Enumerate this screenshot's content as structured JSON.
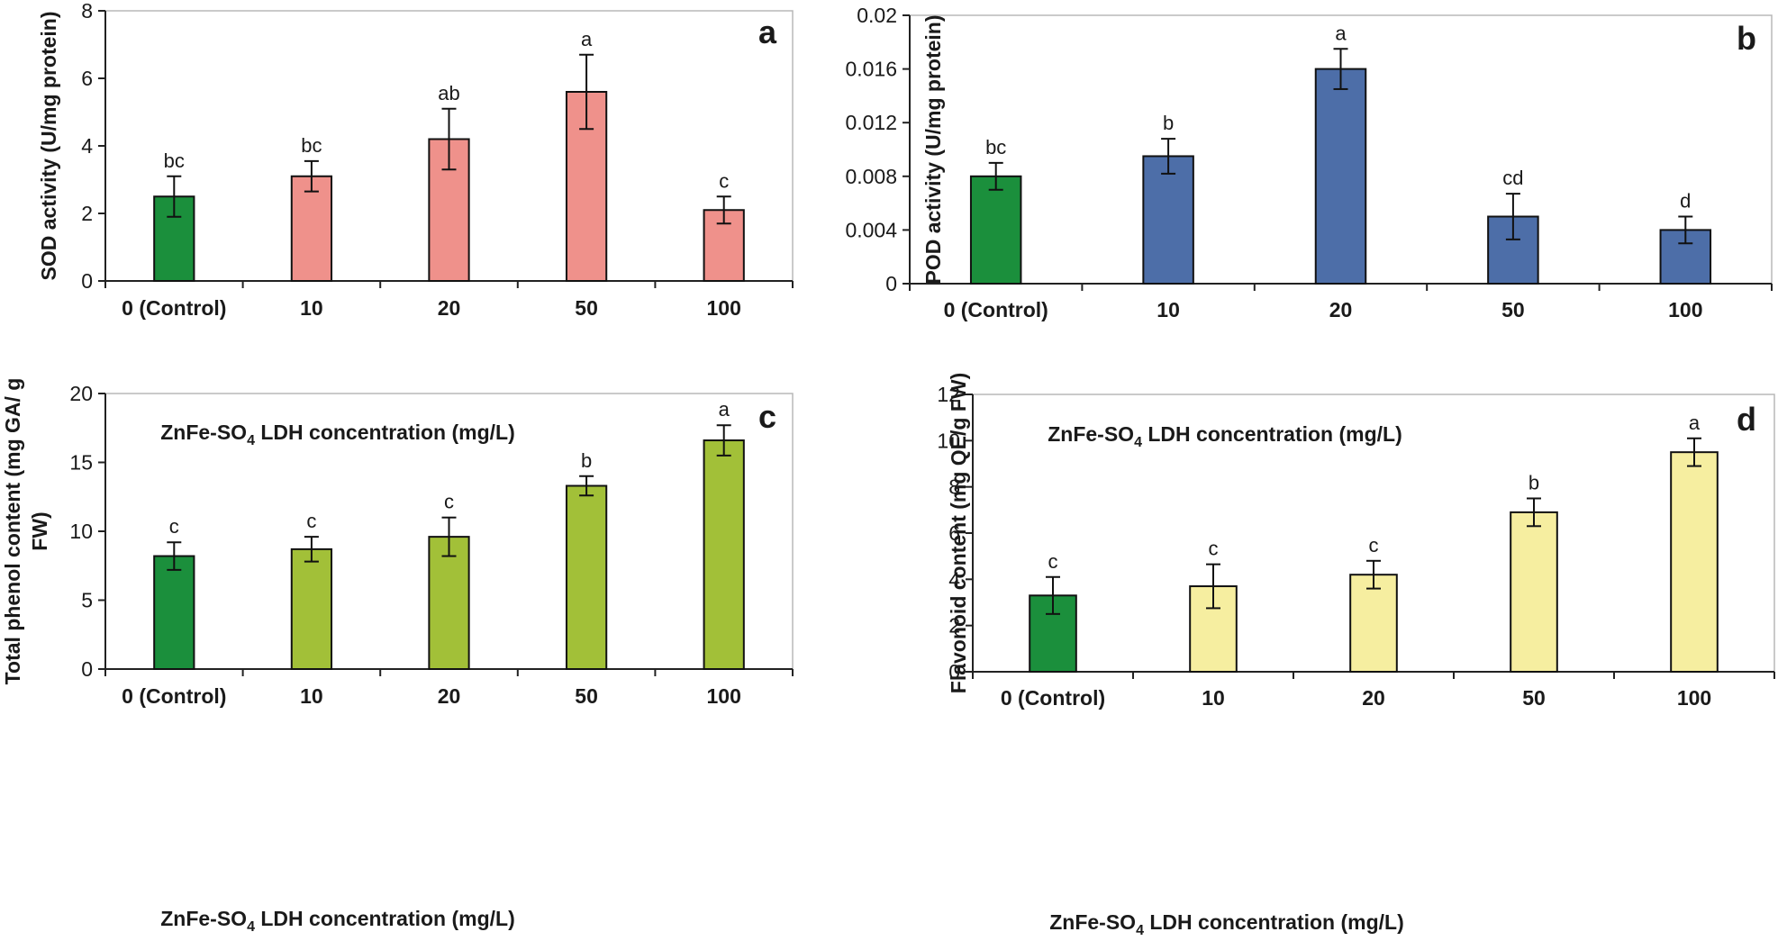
{
  "colors": {
    "control": "#1b8f3c",
    "panel_a": "#ef918b",
    "panel_b": "#4d6ea8",
    "panel_c": "#a2c038",
    "panel_d": "#f6eea0",
    "axis": "#222222"
  },
  "chart_data": [
    {
      "type": "bar",
      "panel": "a",
      "ylabel": "SOD activity (U/mg protein)",
      "xlabel_main": "ZnFe-SO",
      "xlabel_sub": "4",
      "xlabel_rest": " LDH concentration (mg/L)",
      "categories": [
        "0 (Control)",
        "10",
        "20",
        "50",
        "100"
      ],
      "values": [
        2.5,
        3.1,
        4.2,
        5.6,
        2.1
      ],
      "errors": [
        0.6,
        0.45,
        0.9,
        1.1,
        0.4
      ],
      "significance": [
        "bc",
        "bc",
        "ab",
        "a",
        "c"
      ],
      "ylim": [
        0,
        8
      ],
      "yticks": [
        0,
        2,
        4,
        6,
        8
      ],
      "ytick_labels": [
        "0",
        "2",
        "4",
        "6",
        "8"
      ]
    },
    {
      "type": "bar",
      "panel": "b",
      "ylabel": "POD activity (U/mg protein)",
      "xlabel_main": "ZnFe-SO",
      "xlabel_sub": "4",
      "xlabel_rest": " LDH concentration (mg/L)",
      "categories": [
        "0 (Control)",
        "10",
        "20",
        "50",
        "100"
      ],
      "values": [
        0.008,
        0.0095,
        0.016,
        0.005,
        0.004
      ],
      "errors": [
        0.001,
        0.0013,
        0.0015,
        0.0017,
        0.001
      ],
      "significance": [
        "bc",
        "b",
        "a",
        "cd",
        "d"
      ],
      "ylim": [
        0,
        0.02
      ],
      "yticks": [
        0,
        0.004,
        0.008,
        0.012,
        0.016,
        0.02
      ],
      "ytick_labels": [
        "0",
        "0.004",
        "0.008",
        "0.012",
        "0.016",
        "0.02"
      ]
    },
    {
      "type": "bar",
      "panel": "c",
      "ylabel_line1": "Total phenol content (mg GA/ g",
      "ylabel_line2": "FW)",
      "xlabel_main": "ZnFe-SO",
      "xlabel_sub": "4",
      "xlabel_rest": " LDH concentration (mg/L)",
      "categories": [
        "0 (Control)",
        "10",
        "20",
        "50",
        "100"
      ],
      "values": [
        8.2,
        8.7,
        9.6,
        13.3,
        16.6
      ],
      "errors": [
        1.0,
        0.9,
        1.4,
        0.7,
        1.1
      ],
      "significance": [
        "c",
        "c",
        "c",
        "b",
        "a"
      ],
      "ylim": [
        0,
        20
      ],
      "yticks": [
        0,
        5,
        10,
        15,
        20
      ],
      "ytick_labels": [
        "0",
        "5",
        "10",
        "15",
        "20"
      ]
    },
    {
      "type": "bar",
      "panel": "d",
      "ylabel": "Flavonoid content (mg QE/g FW)",
      "xlabel_main": "ZnFe-SO",
      "xlabel_sub": "4",
      "xlabel_rest": " LDH concentration (mg/L)",
      "categories": [
        "0 (Control)",
        "10",
        "20",
        "50",
        "100"
      ],
      "values": [
        3.3,
        3.7,
        4.2,
        6.9,
        9.5
      ],
      "errors": [
        0.8,
        0.95,
        0.6,
        0.6,
        0.6
      ],
      "significance": [
        "c",
        "c",
        "c",
        "b",
        "a"
      ],
      "ylim": [
        0,
        12
      ],
      "yticks": [
        0,
        2,
        4,
        6,
        8,
        10,
        12
      ],
      "ytick_labels": [
        "0",
        "2",
        "4",
        "6",
        "8",
        "10",
        "12"
      ]
    }
  ]
}
